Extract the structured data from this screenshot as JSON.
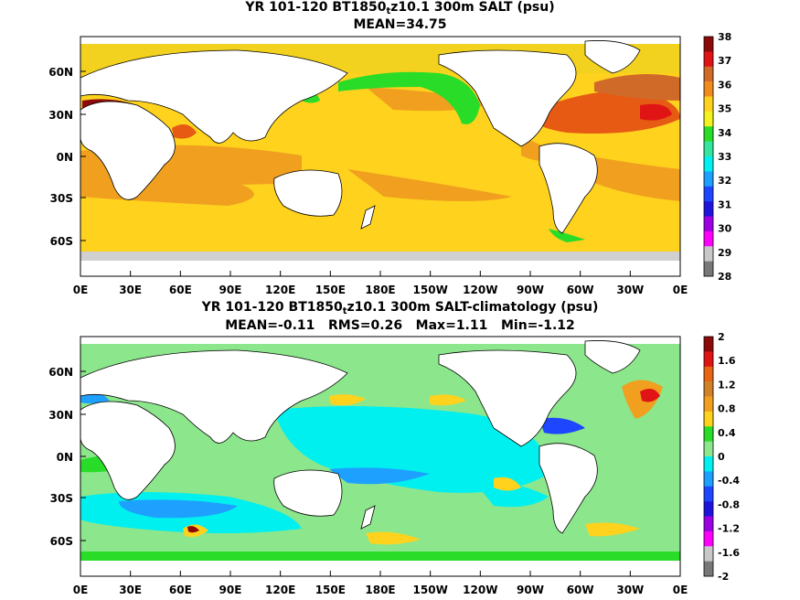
{
  "panels": [
    {
      "title_pre": "YR 101-120 BT1850",
      "title_sub": "t",
      "title_post": "z10.1 300m SALT (psu)",
      "stats": "MEAN=34.75",
      "lat_labels": [
        "60N",
        "30N",
        "0N",
        "30S",
        "60S"
      ],
      "lon_labels": [
        "0E",
        "30E",
        "60E",
        "90E",
        "120E",
        "150E",
        "180E",
        "150W",
        "120W",
        "90W",
        "60W",
        "30W",
        "0E"
      ],
      "colorbar_labels": [
        "38",
        "37",
        "36",
        "35",
        "34",
        "33",
        "32",
        "31",
        "30",
        "29",
        "28"
      ],
      "colorbar_colors": [
        "#8c0a0a",
        "#e01414",
        "#d06a28",
        "#f08c1e",
        "#ffd21e",
        "#f2f21e",
        "#28dc28",
        "#32e6a0",
        "#00f0f0",
        "#1ea0ff",
        "#1e46ff",
        "#1e14dc",
        "#9e00e6",
        "#ff00ff",
        "#c8c8c8",
        "#787878"
      ]
    },
    {
      "title_pre": "YR 101-120 BT1850",
      "title_sub": "t",
      "title_post": "z10.1 300m SALT-climatology (psu)",
      "stats": "MEAN=-0.11   RMS=0.26   Max=1.11   Min=-1.12",
      "lat_labels": [
        "60N",
        "30N",
        "0N",
        "30S",
        "60S"
      ],
      "lon_labels": [
        "0E",
        "30E",
        "60E",
        "90E",
        "120E",
        "150E",
        "180E",
        "150W",
        "120W",
        "90W",
        "60W",
        "30W",
        "0E"
      ],
      "colorbar_labels": [
        "2",
        "1.6",
        "1.2",
        "0.8",
        "0.4",
        "0",
        "-0.4",
        "-0.8",
        "-1.2",
        "-1.6",
        "-2"
      ],
      "colorbar_colors": [
        "#8c0a0a",
        "#e01414",
        "#e66414",
        "#d0822a",
        "#f0a01e",
        "#ffd21e",
        "#28dc28",
        "#8ce68c",
        "#00f0f0",
        "#1ea0ff",
        "#1e46ff",
        "#1e14dc",
        "#9e00e6",
        "#ff00ff",
        "#c8c8c8",
        "#787878"
      ]
    }
  ]
}
